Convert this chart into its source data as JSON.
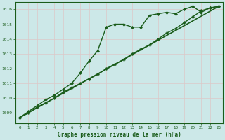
{
  "background_color": "#cce8e8",
  "grid_color": "#c8dada",
  "line_color": "#1a5c1a",
  "title": "Graphe pression niveau de la mer (hPa)",
  "xlim": [
    -0.5,
    23.5
  ],
  "ylim": [
    1008.3,
    1016.5
  ],
  "yticks": [
    1009,
    1010,
    1011,
    1012,
    1013,
    1014,
    1015,
    1016
  ],
  "xticks": [
    0,
    1,
    2,
    3,
    4,
    5,
    6,
    7,
    8,
    9,
    10,
    11,
    12,
    13,
    14,
    15,
    16,
    17,
    18,
    19,
    20,
    21,
    22,
    23
  ],
  "series": [
    {
      "x": [
        0,
        1,
        2,
        3,
        4,
        5,
        6,
        7,
        8,
        9,
        10,
        11,
        12,
        13,
        14,
        15,
        16,
        17,
        18,
        19,
        20,
        21,
        22,
        23
      ],
      "y": [
        1008.7,
        1009.1,
        1009.5,
        1009.9,
        1010.2,
        1010.6,
        1011.0,
        1011.7,
        1012.5,
        1013.2,
        1014.8,
        1015.0,
        1015.0,
        1014.8,
        1014.8,
        1015.6,
        1015.7,
        1015.8,
        1015.7,
        1016.0,
        1016.2,
        1015.8,
        1016.1,
        1016.2
      ],
      "marker": "D",
      "markersize": 2.0,
      "linewidth": 1.0,
      "linestyle": "-"
    },
    {
      "x": [
        0,
        1,
        2,
        3,
        4,
        5,
        6,
        7,
        8,
        9,
        10,
        11,
        12,
        13,
        14,
        15,
        16,
        17,
        18,
        19,
        20,
        21,
        22,
        23
      ],
      "y": [
        1008.7,
        1009.0,
        1009.4,
        1009.7,
        1010.0,
        1010.4,
        1010.7,
        1011.0,
        1011.3,
        1011.6,
        1012.0,
        1012.3,
        1012.6,
        1013.0,
        1013.3,
        1013.6,
        1014.0,
        1014.4,
        1014.7,
        1015.1,
        1015.5,
        1015.9,
        1016.1,
        1016.2
      ],
      "marker": "P",
      "markersize": 2.5,
      "linewidth": 1.0,
      "linestyle": "-"
    },
    {
      "x": [
        0,
        23
      ],
      "y": [
        1008.7,
        1016.2
      ],
      "marker": null,
      "markersize": 0,
      "linewidth": 1.2,
      "linestyle": "-"
    }
  ]
}
